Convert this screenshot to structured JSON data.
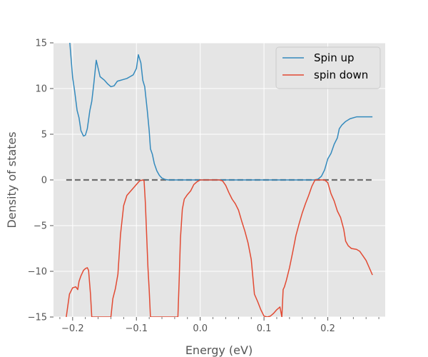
{
  "chart_data": {
    "type": "line",
    "title": "",
    "xlabel": "Energy (eV)",
    "ylabel": "Density of states",
    "xlim": [
      -0.23,
      0.29
    ],
    "ylim": [
      -15,
      15
    ],
    "grid": true,
    "legend_position": "top-right",
    "x_ticks": [
      {
        "value": -0.2,
        "label": "−0.2"
      },
      {
        "value": -0.1,
        "label": "−0.1"
      },
      {
        "value": 0.0,
        "label": "0.0"
      },
      {
        "value": 0.1,
        "label": "0.1"
      },
      {
        "value": 0.2,
        "label": "0.2"
      }
    ],
    "x_minor_ticks": [
      -0.22,
      -0.18,
      -0.16,
      -0.14,
      -0.12,
      -0.08,
      -0.06,
      -0.04,
      -0.02,
      0.02,
      0.04,
      0.06,
      0.08,
      0.12,
      0.14,
      0.16,
      0.18,
      0.22,
      0.24,
      0.26,
      0.28
    ],
    "y_ticks": [
      {
        "value": 15,
        "label": "15"
      },
      {
        "value": 10,
        "label": "10"
      },
      {
        "value": 5,
        "label": "5"
      },
      {
        "value": 0,
        "label": "0"
      },
      {
        "value": -5,
        "label": "−5"
      },
      {
        "value": -10,
        "label": "−10"
      },
      {
        "value": -15,
        "label": "−15"
      }
    ],
    "reference_line": {
      "y": 0,
      "x_start": -0.21,
      "x_end": 0.27,
      "color": "#6e6e6e",
      "style": "dashed"
    },
    "series": [
      {
        "name": "Spin up",
        "color": "#348abd",
        "points": [
          [
            -0.205,
            15.5
          ],
          [
            -0.2,
            11.2
          ],
          [
            -0.197,
            9.8
          ],
          [
            -0.193,
            7.6
          ],
          [
            -0.19,
            6.8
          ],
          [
            -0.187,
            5.4
          ],
          [
            -0.183,
            4.8
          ],
          [
            -0.18,
            4.9
          ],
          [
            -0.177,
            5.6
          ],
          [
            -0.173,
            7.6
          ],
          [
            -0.17,
            8.6
          ],
          [
            -0.167,
            10.4
          ],
          [
            -0.163,
            13.1
          ],
          [
            -0.16,
            12.2
          ],
          [
            -0.157,
            11.3
          ],
          [
            -0.15,
            10.9
          ],
          [
            -0.145,
            10.5
          ],
          [
            -0.14,
            10.2
          ],
          [
            -0.135,
            10.3
          ],
          [
            -0.13,
            10.8
          ],
          [
            -0.125,
            10.9
          ],
          [
            -0.12,
            11.0
          ],
          [
            -0.115,
            11.1
          ],
          [
            -0.11,
            11.3
          ],
          [
            -0.105,
            11.5
          ],
          [
            -0.1,
            12.2
          ],
          [
            -0.097,
            13.7
          ],
          [
            -0.093,
            12.8
          ],
          [
            -0.09,
            10.9
          ],
          [
            -0.087,
            10.2
          ],
          [
            -0.083,
            7.6
          ],
          [
            -0.08,
            5.4
          ],
          [
            -0.078,
            3.4
          ],
          [
            -0.075,
            2.8
          ],
          [
            -0.072,
            1.8
          ],
          [
            -0.068,
            1.0
          ],
          [
            -0.064,
            0.5
          ],
          [
            -0.06,
            0.2
          ],
          [
            -0.055,
            0.05
          ],
          [
            -0.05,
            0.0
          ],
          [
            0.0,
            0.0
          ],
          [
            0.1,
            0.0
          ],
          [
            0.18,
            0.0
          ],
          [
            0.185,
            0.1
          ],
          [
            0.19,
            0.4
          ],
          [
            0.195,
            1.1
          ],
          [
            0.2,
            2.3
          ],
          [
            0.205,
            2.9
          ],
          [
            0.21,
            3.9
          ],
          [
            0.215,
            4.6
          ],
          [
            0.218,
            5.6
          ],
          [
            0.222,
            6.0
          ],
          [
            0.228,
            6.4
          ],
          [
            0.235,
            6.7
          ],
          [
            0.245,
            6.9
          ],
          [
            0.255,
            6.9
          ],
          [
            0.265,
            6.9
          ],
          [
            0.27,
            6.9
          ]
        ]
      },
      {
        "name": "spin down",
        "color": "#e24a33",
        "points": [
          [
            -0.21,
            -15.0
          ],
          [
            -0.205,
            -12.5
          ],
          [
            -0.2,
            -11.8
          ],
          [
            -0.195,
            -11.7
          ],
          [
            -0.192,
            -12.0
          ],
          [
            -0.19,
            -11.1
          ],
          [
            -0.187,
            -10.5
          ],
          [
            -0.183,
            -9.9
          ],
          [
            -0.18,
            -9.7
          ],
          [
            -0.177,
            -9.6
          ],
          [
            -0.175,
            -9.9
          ],
          [
            -0.172,
            -12.5
          ],
          [
            -0.17,
            -15.0
          ],
          [
            -0.14,
            -15.0
          ],
          [
            -0.137,
            -13.0
          ],
          [
            -0.133,
            -11.9
          ],
          [
            -0.129,
            -10.3
          ],
          [
            -0.125,
            -6.0
          ],
          [
            -0.12,
            -2.8
          ],
          [
            -0.115,
            -1.7
          ],
          [
            -0.11,
            -1.3
          ],
          [
            -0.105,
            -0.9
          ],
          [
            -0.1,
            -0.5
          ],
          [
            -0.095,
            -0.1
          ],
          [
            -0.09,
            0.0
          ],
          [
            -0.088,
            -0.1
          ],
          [
            -0.086,
            -2.5
          ],
          [
            -0.084,
            -6.0
          ],
          [
            -0.082,
            -9.5
          ],
          [
            -0.08,
            -12.0
          ],
          [
            -0.078,
            -15.0
          ],
          [
            -0.035,
            -15.0
          ],
          [
            -0.033,
            -11.0
          ],
          [
            -0.031,
            -6.4
          ],
          [
            -0.028,
            -3.2
          ],
          [
            -0.025,
            -2.1
          ],
          [
            -0.02,
            -1.6
          ],
          [
            -0.015,
            -1.2
          ],
          [
            -0.01,
            -0.5
          ],
          [
            -0.005,
            -0.2
          ],
          [
            0.0,
            0.0
          ],
          [
            0.03,
            0.0
          ],
          [
            0.035,
            -0.1
          ],
          [
            0.04,
            -0.6
          ],
          [
            0.045,
            -1.4
          ],
          [
            0.05,
            -2.1
          ],
          [
            0.055,
            -2.6
          ],
          [
            0.06,
            -3.3
          ],
          [
            0.065,
            -4.5
          ],
          [
            0.07,
            -5.6
          ],
          [
            0.075,
            -6.9
          ],
          [
            0.08,
            -8.7
          ],
          [
            0.085,
            -12.5
          ],
          [
            0.09,
            -13.3
          ],
          [
            0.095,
            -14.2
          ],
          [
            0.1,
            -14.9
          ],
          [
            0.105,
            -15.0
          ],
          [
            0.11,
            -14.9
          ],
          [
            0.115,
            -14.6
          ],
          [
            0.12,
            -14.2
          ],
          [
            0.125,
            -13.9
          ],
          [
            0.128,
            -15.0
          ],
          [
            0.13,
            -12.0
          ],
          [
            0.132,
            -11.7
          ],
          [
            0.135,
            -11.0
          ],
          [
            0.14,
            -9.6
          ],
          [
            0.145,
            -7.9
          ],
          [
            0.15,
            -6.1
          ],
          [
            0.155,
            -4.8
          ],
          [
            0.16,
            -3.6
          ],
          [
            0.165,
            -2.6
          ],
          [
            0.17,
            -1.7
          ],
          [
            0.175,
            -0.7
          ],
          [
            0.18,
            0.0
          ],
          [
            0.195,
            0.0
          ],
          [
            0.2,
            -0.3
          ],
          [
            0.205,
            -1.5
          ],
          [
            0.21,
            -2.3
          ],
          [
            0.215,
            -3.4
          ],
          [
            0.22,
            -4.1
          ],
          [
            0.225,
            -5.4
          ],
          [
            0.228,
            -6.7
          ],
          [
            0.232,
            -7.2
          ],
          [
            0.237,
            -7.5
          ],
          [
            0.245,
            -7.6
          ],
          [
            0.25,
            -7.8
          ],
          [
            0.255,
            -8.3
          ],
          [
            0.26,
            -8.8
          ],
          [
            0.265,
            -9.6
          ],
          [
            0.27,
            -10.4
          ]
        ]
      }
    ]
  }
}
